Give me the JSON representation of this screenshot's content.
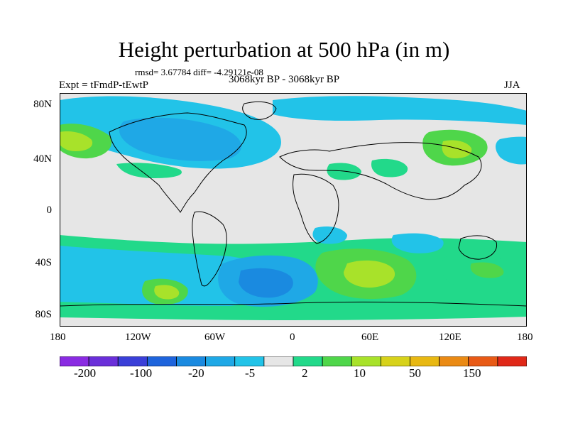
{
  "title": "Height perturbation at 500 hPa (in m)",
  "stats": "rmsd= 3.67784 diff= -4.29121e-08",
  "left_label": "Expt = tFmdP-tEwtP",
  "center_label": "3068kyr BP - 3068kyr BP",
  "right_label": "JJA",
  "axes": {
    "lat_ticks": [
      "80N",
      "40N",
      "0",
      "40S",
      "80S"
    ],
    "lon_ticks": [
      "180",
      "120W",
      "60W",
      "0",
      "60E",
      "120E",
      "180"
    ]
  },
  "colorbar": {
    "colors": [
      "#8a2be2",
      "#6a2fd9",
      "#3a3fd8",
      "#1e64dc",
      "#1a8ae0",
      "#1fa8e6",
      "#22c3e8",
      "#e6e6e6",
      "#22d98a",
      "#4fd64a",
      "#a8e22a",
      "#d7d21a",
      "#e8b812",
      "#ea8a14",
      "#e85a16",
      "#e02818"
    ],
    "tick_labels": [
      "-200",
      "-100",
      "-20",
      "-5",
      "2",
      "10",
      "50",
      "150"
    ]
  }
}
